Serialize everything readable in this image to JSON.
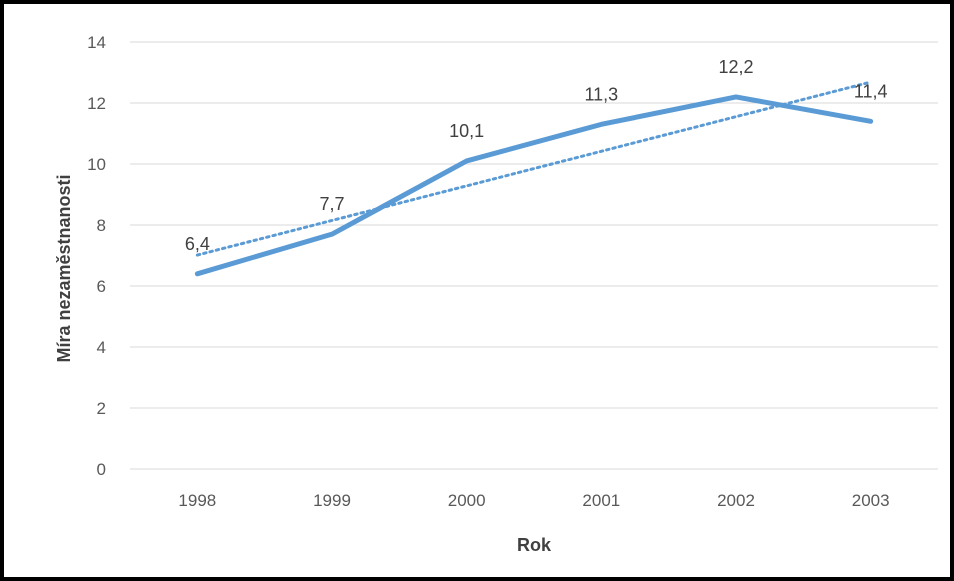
{
  "chart_data": {
    "type": "line",
    "categories": [
      "1998",
      "1999",
      "2000",
      "2001",
      "2002",
      "2003"
    ],
    "series": [
      {
        "values": [
          6.4,
          7.7,
          10.1,
          11.3,
          12.2,
          11.4
        ],
        "data_labels": [
          "6,4",
          "7,7",
          "10,1",
          "11,3",
          "12,2",
          "11,4"
        ],
        "color": "#5B9BD5",
        "trendline": "linear"
      }
    ],
    "xlabel": "Rok",
    "ylabel": "Míra nezaměstnanosti",
    "ylim": [
      0,
      14
    ],
    "yticks": [
      "0",
      "2",
      "4",
      "6",
      "8",
      "10",
      "12",
      "14"
    ],
    "grid": true,
    "legend": "none",
    "colors": {
      "line": "#5B9BD5",
      "grid": "#D9D9D9",
      "text": "#595959",
      "border": "#000000"
    }
  }
}
